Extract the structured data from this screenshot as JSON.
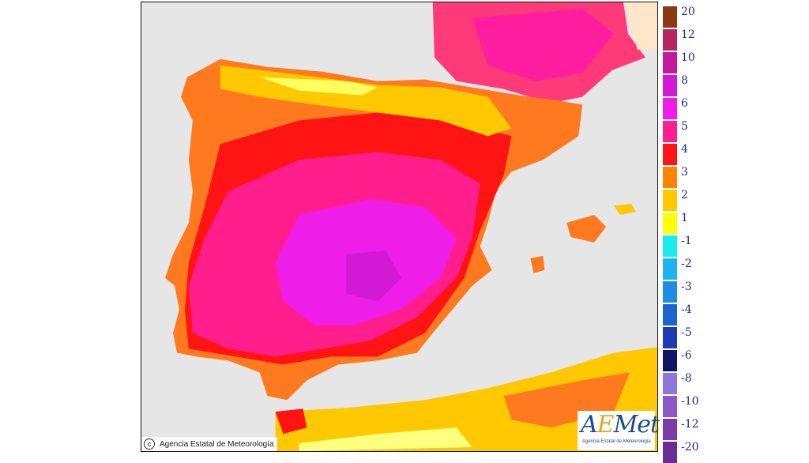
{
  "legend": {
    "labels": [
      "20",
      "12",
      "10",
      "8",
      "6",
      "5",
      "4",
      "3",
      "2",
      "1",
      "-1",
      "-2",
      "-3",
      "-4",
      "-5",
      "-6",
      "-8",
      "-10",
      "-12",
      "-20"
    ],
    "colors": [
      "#8b3a14",
      "#b8245c",
      "#c21a9a",
      "#d21ad6",
      "#ee1ee8",
      "#ff1e8c",
      "#ff1414",
      "#ff8200",
      "#ffc800",
      "#ffff00",
      "#18ecec",
      "#1eb4f0",
      "#1e8ce6",
      "#1c64d0",
      "#1e3cb4",
      "#141464",
      "#8c78dc",
      "#8c58c8",
      "#7c3ca8",
      "#6c2c98"
    ]
  },
  "copyright": {
    "text": "Agencia Estatal de Meteorología",
    "icon": "copyright-icon"
  },
  "logo": {
    "text": "AEMet",
    "subtitle": "Agencia Estatal de Meteorología"
  }
}
